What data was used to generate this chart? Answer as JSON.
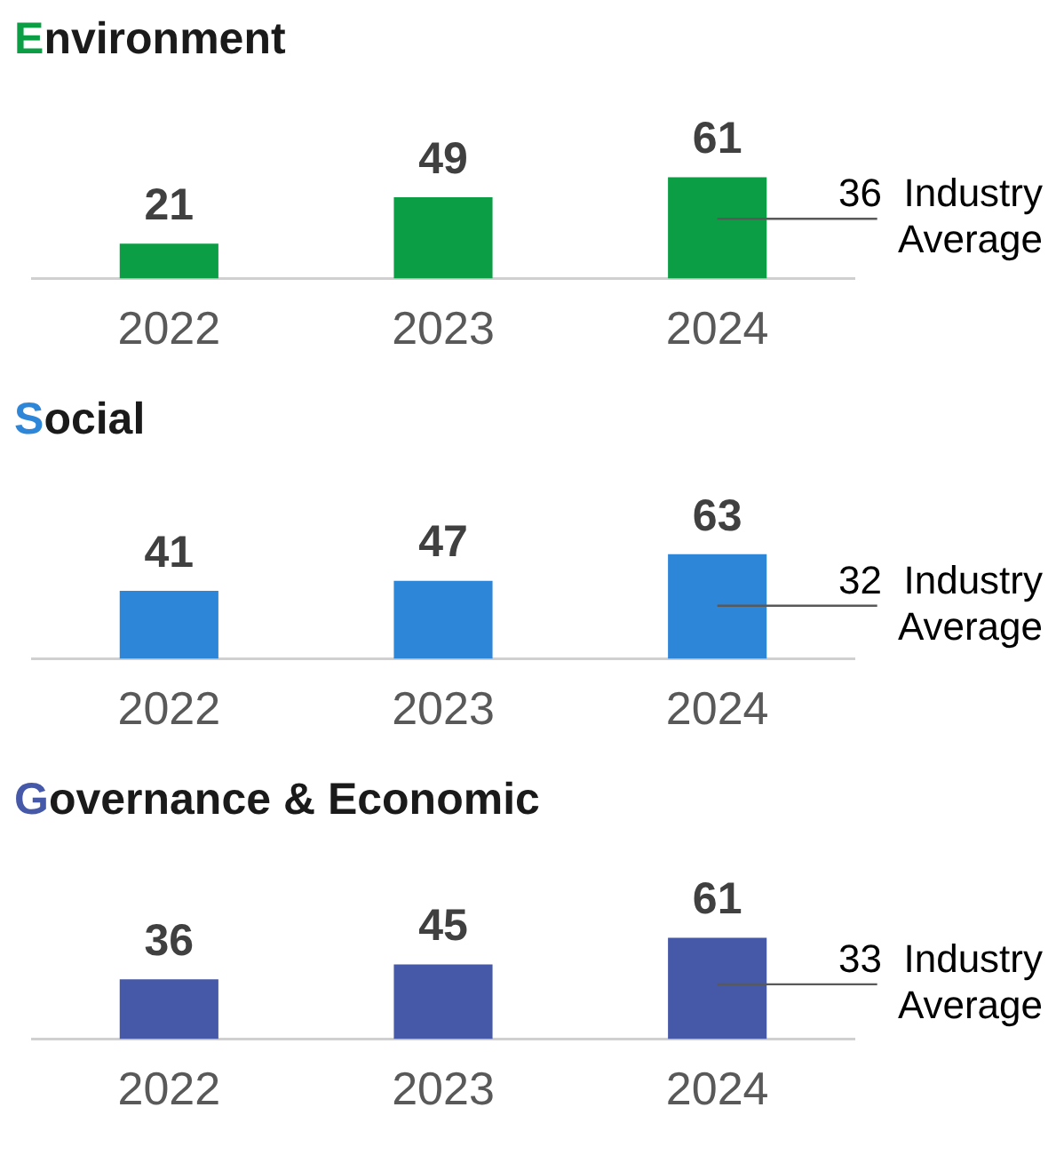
{
  "chart_data": [
    {
      "type": "bar",
      "title": "Environment",
      "categories": [
        "2022",
        "2023",
        "2024"
      ],
      "values": [
        21,
        49,
        61
      ],
      "color": "#0b9e45",
      "data_labels": true,
      "tick_labels": "x",
      "grid": false,
      "legend": false,
      "ref_lines": [
        {
          "axis": "y",
          "value": 36,
          "label": "36 Industry Average"
        }
      ]
    },
    {
      "type": "bar",
      "title": "Social",
      "categories": [
        "2022",
        "2023",
        "2024"
      ],
      "values": [
        41,
        47,
        63
      ],
      "color": "#2e86d9",
      "data_labels": true,
      "tick_labels": "x",
      "grid": false,
      "legend": false,
      "ref_lines": [
        {
          "axis": "y",
          "value": 32,
          "label": "32 Industry Average"
        }
      ]
    },
    {
      "type": "bar",
      "title": "Governance & Economic",
      "categories": [
        "2022",
        "2023",
        "2024"
      ],
      "values": [
        36,
        45,
        61
      ],
      "color": "#4659a8",
      "data_labels": true,
      "tick_labels": "x",
      "grid": false,
      "legend": false,
      "ref_lines": [
        {
          "axis": "y",
          "value": 33,
          "label": "33 Industry Average"
        }
      ]
    }
  ]
}
